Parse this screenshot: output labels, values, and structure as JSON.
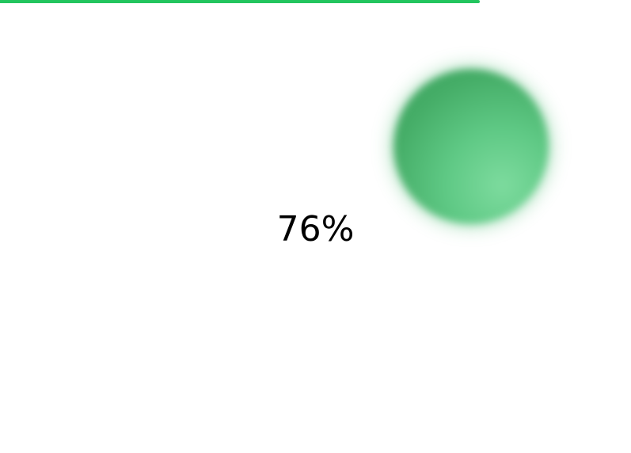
{
  "progress": {
    "fraction": 0.76,
    "label": "76%",
    "color": "#22c55e"
  },
  "decoration": {
    "blob_color": "#4ab870"
  }
}
